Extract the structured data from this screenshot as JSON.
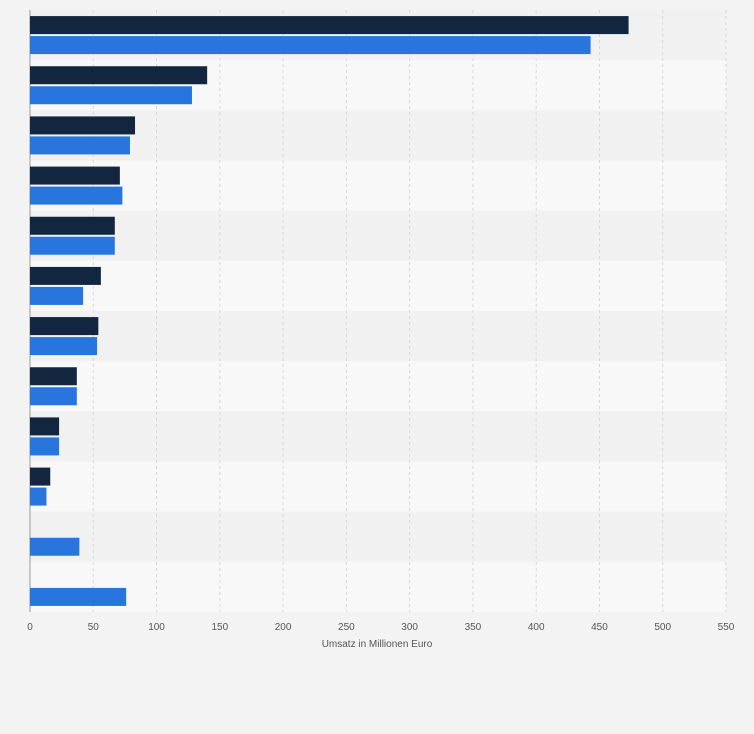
{
  "chart_data": {
    "type": "bar",
    "orientation": "horizontal",
    "categories": [
      "",
      "",
      "",
      "",
      "",
      "",
      "",
      "",
      "",
      "",
      "",
      ""
    ],
    "series": [
      {
        "color": "#13263f",
        "values": [
          473,
          140,
          83,
          71,
          67,
          56,
          54,
          37,
          23,
          16,
          null,
          null
        ]
      },
      {
        "color": "#2876dd",
        "values": [
          443,
          128,
          79,
          73,
          67,
          42,
          53,
          37,
          23,
          13,
          39,
          76
        ]
      }
    ],
    "xlabel": "Umsatz in Millionen Euro",
    "ylabel": "",
    "xlim": [
      0,
      550
    ],
    "xticks": [
      0,
      50,
      100,
      150,
      200,
      250,
      300,
      350,
      400,
      450,
      500,
      550
    ],
    "grid": true,
    "legend": "none",
    "colors": {
      "page_background": "#f3f3f3",
      "plot_band_dark": "#f1f1f1",
      "plot_band_light": "#f8f8f8",
      "gridline": "#d8d8d8",
      "axis_text": "#555555"
    }
  }
}
